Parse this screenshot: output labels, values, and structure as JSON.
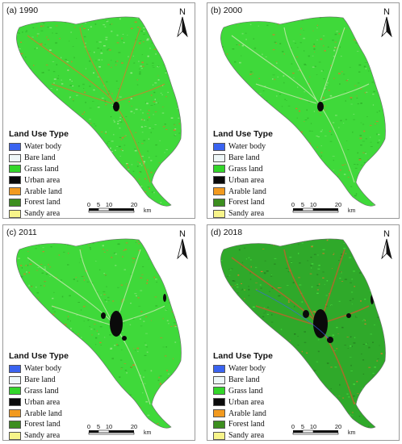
{
  "panels": [
    {
      "label": "(a) 1990"
    },
    {
      "label": "(b) 2000"
    },
    {
      "label": "(c) 2011"
    },
    {
      "label": "(d) 2018"
    }
  ],
  "legend": {
    "title": "Land Use Type",
    "items": [
      {
        "label": "Water body",
        "color": "#3a63f0"
      },
      {
        "label": "Bare land",
        "color": "#eef7f8"
      },
      {
        "label": "Grass land",
        "color": "#33d62a"
      },
      {
        "label": "Urban area",
        "color": "#0a0a0a"
      },
      {
        "label": "Arable land",
        "color": "#f29a1f"
      },
      {
        "label": "Forest land",
        "color": "#3c8e1f"
      },
      {
        "label": "Sandy area",
        "color": "#f7f48a"
      }
    ]
  },
  "north_arrow": {
    "letter": "N"
  },
  "scale_bar": {
    "ticks": [
      "0",
      "5",
      "10",
      "20"
    ],
    "unit": "km"
  },
  "map_colors": {
    "grass": "#3fd93a",
    "grass_dark": "#2fa92a",
    "urban": "#0a0a0a",
    "arable": "#d77a2a",
    "water": "#3a63f0"
  }
}
